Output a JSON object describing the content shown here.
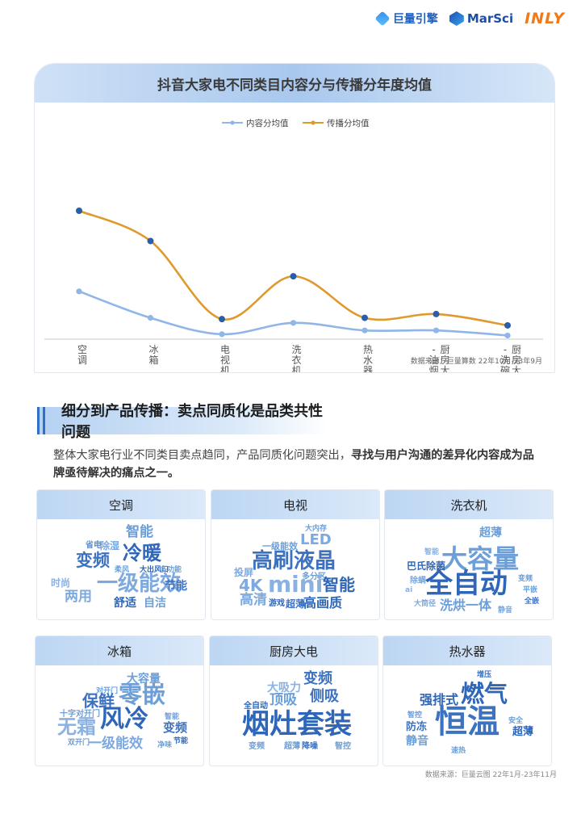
{
  "logos": {
    "juliang": "巨量引擎",
    "marsci": "MarSci",
    "inly": "INLY"
  },
  "chart_data": {
    "type": "line",
    "title": "抖音大家电不同类目内容分与传播分年度均值",
    "categories": [
      "空调",
      "冰箱",
      "电视机",
      "洗衣机",
      "热水器",
      "厨房大电-油烟机",
      "厨房大电-洗碗机"
    ],
    "category_labels": [
      {
        "cols": [
          "空调"
        ]
      },
      {
        "cols": [
          "冰箱"
        ]
      },
      {
        "cols": [
          "电视机"
        ]
      },
      {
        "cols": [
          "洗衣机"
        ]
      },
      {
        "cols": [
          "热水器"
        ]
      },
      {
        "cols": [
          "-油烟机",
          "厨房大电"
        ]
      },
      {
        "cols": [
          "-洗碗机",
          "厨房大电"
        ]
      }
    ],
    "series": [
      {
        "name": "内容分均值",
        "color": "#8fb6e6",
        "values": [
          36,
          15,
          2,
          11,
          5,
          5,
          1
        ]
      },
      {
        "name": "传播分均值",
        "color": "#de9a2c",
        "values": [
          100,
          76,
          14,
          48,
          15,
          18,
          9
        ]
      }
    ],
    "ylim": [
      0,
      110
    ],
    "grid": false,
    "legend": "top",
    "source": "数据来源：巨量算数  22年10月-23年9月"
  },
  "section": {
    "title": "细分到产品传播：卖点同质化是品类共性问题",
    "desc_normal": "整体大家电行业不同类目卖点趋同，产品同质化问题突出，",
    "desc_bold": "寻找与用户沟通的差异化内容成为品牌亟待解决的痛点之一。"
  },
  "clouds": [
    {
      "name": "空调",
      "words": [
        "智能",
        "省电",
        "除湿",
        "冷暖",
        "变频",
        "柔风",
        "大出风口",
        "多功能",
        "时尚",
        "一级能效",
        "节能",
        "两用",
        "舒适",
        "自洁"
      ]
    },
    {
      "name": "电视",
      "words": [
        "大内存",
        "LED",
        "一级能效",
        "高刷液晶",
        "投屏",
        "4K",
        "多分区",
        "mini",
        "智能",
        "高清",
        "游戏",
        "超薄",
        "高画质"
      ]
    },
    {
      "name": "洗衣机",
      "words": [
        "超薄",
        "智能",
        "大容量",
        "巴氏除菌",
        "除螨",
        "变频",
        "ai",
        "全自动",
        "平嵌",
        "全嵌",
        "大筒径",
        "洗烘一体",
        "静音"
      ]
    },
    {
      "name": "冰箱",
      "words": [
        "大容量",
        "对开门",
        "保鲜",
        "零嵌",
        "十字对开门",
        "风冷",
        "智能",
        "无霜",
        "变频",
        "双开门",
        "一级能效",
        "净味",
        "节能"
      ]
    },
    {
      "name": "厨房大电",
      "words": [
        "变频",
        "大吸力",
        "顶吸",
        "侧吸",
        "全自动",
        "烟灶套装",
        "变频",
        "超薄",
        "降噪",
        "智控"
      ]
    },
    {
      "name": "热水器",
      "words": [
        "增压",
        "燃气",
        "强排式",
        "智控",
        "恒温",
        "安全",
        "防冻",
        "超薄",
        "静音",
        "速热"
      ]
    }
  ],
  "cloud_source": "数据来源：巨量云图  22年1月-23年11月"
}
